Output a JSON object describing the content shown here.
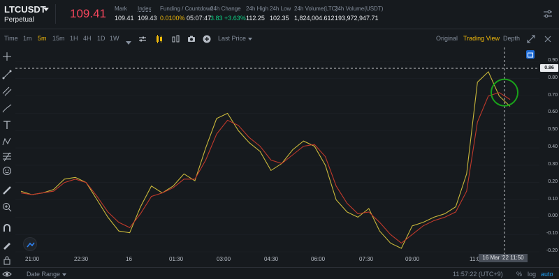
{
  "header": {
    "symbol": "LTCUSDT",
    "contract_type": "Perpetual",
    "last_price": "109.41",
    "stats": [
      {
        "label": "Mark",
        "value": "109.41"
      },
      {
        "label": "Index",
        "value": "109.43"
      },
      {
        "label": "Funding / Countdown",
        "value_rate": "0.0100%",
        "value_time": "05:07:47"
      },
      {
        "label": "24h Change",
        "value": "3.83 +3.63%"
      },
      {
        "label": "24h High",
        "value": "112.25"
      },
      {
        "label": "24h Low",
        "value": "102.35"
      },
      {
        "label": "24h Volume(LTC)",
        "value": "1,824,004.612"
      },
      {
        "label": "24h Volume(USDT)",
        "value": "193,972,947.71"
      }
    ]
  },
  "toolbar": {
    "intervals": [
      "Time",
      "1m",
      "5m",
      "15m",
      "1H",
      "4H",
      "1D",
      "1W"
    ],
    "active_interval": "5m",
    "price_type": "Last Price",
    "views": [
      "Original",
      "Trading View",
      "Depth"
    ],
    "active_view": "Trading View"
  },
  "yaxis": {
    "ticks": [
      "0.90",
      "0.80",
      "0.70",
      "0.60",
      "0.50",
      "0.40",
      "0.30",
      "0.20",
      "0.10",
      "0.00",
      "-0.10",
      "-0.20"
    ],
    "current_value_tag": "0.86"
  },
  "xaxis": {
    "ticks": [
      "21:00",
      "22:30",
      "16",
      "01:30",
      "03:00",
      "04:30",
      "06:00",
      "07:30",
      "09:00",
      "11:0"
    ],
    "crosshair_label": "16 Mar '22   11:50"
  },
  "footer": {
    "date_range": "Date Range",
    "clock": "11:57:22 (UTC+9)",
    "percent": "%",
    "log": "log",
    "auto": "auto"
  },
  "colors": {
    "background": "#161a1e",
    "up": "#0ecb81",
    "down": "#f6465d",
    "accent": "#f0b90b",
    "line_fast": "#c9b83b",
    "line_slow": "#c0392b",
    "annotation_circle": "#19a11a"
  },
  "chart_data": {
    "type": "line",
    "ylim": [
      -0.2,
      0.9
    ],
    "series": [
      {
        "values": [
          0.15,
          0.13,
          0.14,
          0.16,
          0.22,
          0.23,
          0.2,
          0.1,
          0.0,
          -0.08,
          -0.09,
          0.06,
          0.18,
          0.14,
          0.18,
          0.25,
          0.21,
          0.4,
          0.57,
          0.6,
          0.5,
          0.43,
          0.38,
          0.27,
          0.31,
          0.39,
          0.44,
          0.41,
          0.3,
          0.1,
          0.03,
          0.0,
          0.05,
          -0.08,
          -0.15,
          -0.18,
          -0.05,
          -0.03,
          0.0,
          0.02,
          0.06,
          0.25,
          0.78,
          0.84,
          0.7,
          0.64
        ]
      },
      {
        "values": [
          0.14,
          0.13,
          0.14,
          0.15,
          0.2,
          0.22,
          0.2,
          0.12,
          0.03,
          -0.03,
          -0.06,
          0.02,
          0.12,
          0.14,
          0.17,
          0.22,
          0.22,
          0.33,
          0.48,
          0.56,
          0.53,
          0.46,
          0.41,
          0.33,
          0.31,
          0.36,
          0.41,
          0.42,
          0.35,
          0.18,
          0.08,
          0.02,
          0.03,
          -0.03,
          -0.1,
          -0.15,
          -0.1,
          -0.05,
          -0.02,
          0.0,
          0.03,
          0.15,
          0.55,
          0.7,
          0.72,
          0.68
        ]
      }
    ],
    "legend": "none",
    "grid": true
  }
}
